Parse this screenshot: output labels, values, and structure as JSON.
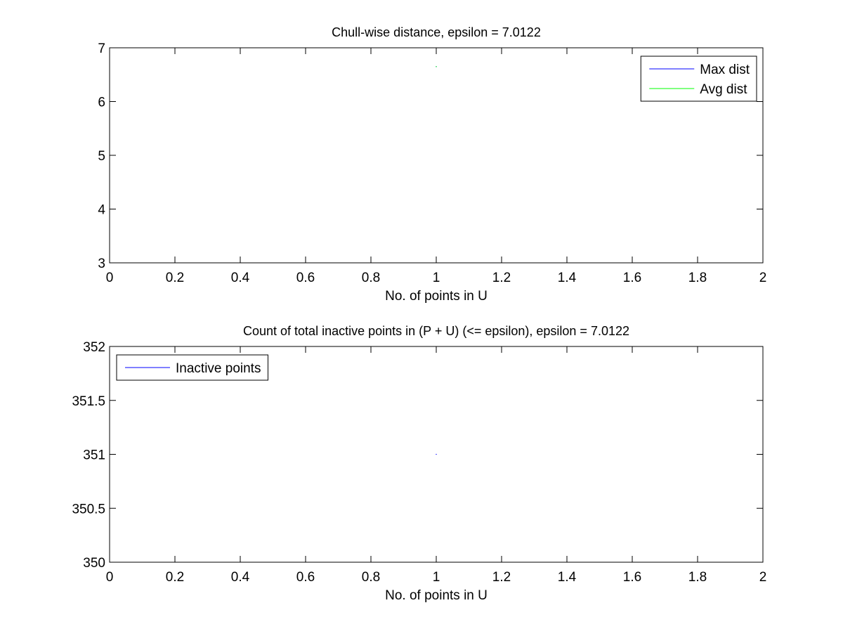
{
  "chart_data": [
    {
      "type": "line",
      "title": "Chull-wise distance, epsilon = 7.0122",
      "xlabel": "No. of points in U",
      "ylabel": "",
      "xlim": [
        0,
        2
      ],
      "ylim": [
        3,
        7
      ],
      "x_ticks": [
        "0",
        "0.2",
        "0.4",
        "0.6",
        "0.8",
        "1",
        "1.2",
        "1.4",
        "1.6",
        "1.8",
        "2"
      ],
      "y_ticks": [
        "3",
        "4",
        "5",
        "6",
        "7"
      ],
      "grid": false,
      "legend_position": "top-right",
      "series": [
        {
          "name": "Max dist",
          "color": "#0000ff",
          "x": [
            1
          ],
          "y": [
            6.65
          ]
        },
        {
          "name": "Avg dist",
          "color": "#00ff00",
          "x": [
            1
          ],
          "y": [
            6.65
          ]
        }
      ]
    },
    {
      "type": "line",
      "title": "Count of total inactive points in (P + U) (<= epsilon), epsilon = 7.0122",
      "xlabel": "No. of points in U",
      "ylabel": "",
      "xlim": [
        0,
        2
      ],
      "ylim": [
        350,
        352
      ],
      "x_ticks": [
        "0",
        "0.2",
        "0.4",
        "0.6",
        "0.8",
        "1",
        "1.2",
        "1.4",
        "1.6",
        "1.8",
        "2"
      ],
      "y_ticks": [
        "350",
        "350.5",
        "351",
        "351.5",
        "352"
      ],
      "grid": false,
      "legend_position": "top-left",
      "series": [
        {
          "name": "Inactive points",
          "color": "#0000ff",
          "x": [
            1
          ],
          "y": [
            351
          ]
        }
      ]
    }
  ]
}
